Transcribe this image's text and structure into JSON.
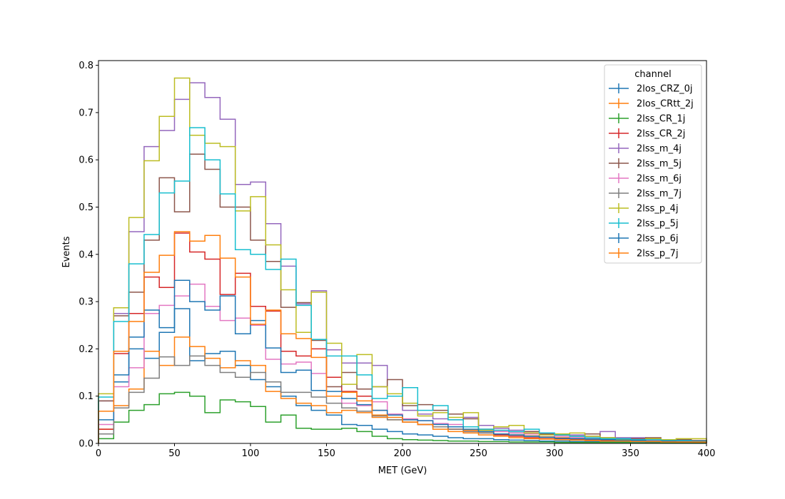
{
  "chart_data": {
    "type": "histogram-step",
    "xlabel": "MET (GeV)",
    "ylabel": "Events",
    "xlim": [
      0,
      400
    ],
    "ylim": [
      0,
      0.81
    ],
    "x_ticks": [
      "0",
      "50",
      "100",
      "150",
      "200",
      "250",
      "300",
      "350",
      "400"
    ],
    "y_ticks": [
      "0.0",
      "0.1",
      "0.2",
      "0.3",
      "0.4",
      "0.5",
      "0.6",
      "0.7",
      "0.8"
    ],
    "grid": false,
    "legend_title": "channel",
    "legend_position": "top-right",
    "bin_edges": [
      0,
      10,
      20,
      30,
      40,
      50,
      60,
      70,
      80,
      90,
      100,
      110,
      120,
      130,
      140,
      150,
      160,
      170,
      180,
      190,
      200,
      210,
      220,
      230,
      240,
      250,
      260,
      270,
      280,
      290,
      300,
      310,
      320,
      330,
      340,
      350,
      360,
      370,
      380,
      390,
      400
    ],
    "series": [
      {
        "name": "2los_CRZ_0j",
        "color": "#1f77b4",
        "values": [
          0.02,
          0.13,
          0.2,
          0.18,
          0.235,
          0.285,
          0.175,
          0.19,
          0.195,
          0.165,
          0.135,
          0.12,
          0.1,
          0.08,
          0.07,
          0.06,
          0.04,
          0.038,
          0.03,
          0.025,
          0.02,
          0.018,
          0.015,
          0.012,
          0.01,
          0.01,
          0.008,
          0.007,
          0.006,
          0.005,
          0.005,
          0.004,
          0.004,
          0.003,
          0.003,
          0.003,
          0.002,
          0.002,
          0.002,
          0.002
        ]
      },
      {
        "name": "2los_CRtt_2j",
        "color": "#ff7f0e",
        "values": [
          0.03,
          0.08,
          0.115,
          0.195,
          0.165,
          0.225,
          0.205,
          0.18,
          0.16,
          0.175,
          0.165,
          0.11,
          0.095,
          0.085,
          0.08,
          0.065,
          0.07,
          0.065,
          0.055,
          0.05,
          0.045,
          0.04,
          0.035,
          0.03,
          0.028,
          0.025,
          0.02,
          0.018,
          0.016,
          0.014,
          0.012,
          0.01,
          0.009,
          0.008,
          0.007,
          0.006,
          0.005,
          0.005,
          0.004,
          0.004
        ]
      },
      {
        "name": "2lss_CR_1j",
        "color": "#2ca02c",
        "values": [
          0.01,
          0.045,
          0.07,
          0.082,
          0.105,
          0.108,
          0.1,
          0.065,
          0.092,
          0.088,
          0.078,
          0.045,
          0.06,
          0.032,
          0.03,
          0.03,
          0.032,
          0.025,
          0.015,
          0.01,
          0.008,
          0.007,
          0.006,
          0.005,
          0.005,
          0.004,
          0.004,
          0.003,
          0.003,
          0.003,
          0.002,
          0.002,
          0.002,
          0.002,
          0.002,
          0.001,
          0.001,
          0.001,
          0.001,
          0.001
        ]
      },
      {
        "name": "2lss_CR_2j",
        "color": "#d62728",
        "values": [
          0.03,
          0.19,
          0.275,
          0.352,
          0.33,
          0.445,
          0.405,
          0.39,
          0.315,
          0.36,
          0.29,
          0.28,
          0.195,
          0.185,
          0.2,
          0.14,
          0.11,
          0.1,
          0.07,
          0.06,
          0.05,
          0.04,
          0.035,
          0.03,
          0.025,
          0.022,
          0.018,
          0.015,
          0.012,
          0.01,
          0.009,
          0.008,
          0.007,
          0.006,
          0.005,
          0.005,
          0.004,
          0.004,
          0.003,
          0.003
        ]
      },
      {
        "name": "2lss_m_4j",
        "color": "#9467bd",
        "values": [
          0.09,
          0.275,
          0.448,
          0.628,
          0.662,
          0.728,
          0.763,
          0.732,
          0.686,
          0.548,
          0.553,
          0.465,
          0.375,
          0.295,
          0.323,
          0.198,
          0.17,
          0.17,
          0.165,
          0.1,
          0.07,
          0.062,
          0.052,
          0.05,
          0.055,
          0.038,
          0.032,
          0.028,
          0.025,
          0.022,
          0.018,
          0.018,
          0.015,
          0.025,
          0.012,
          0.012,
          0.01,
          0.008,
          0.008,
          0.006
        ]
      },
      {
        "name": "2lss_m_5j",
        "color": "#8c564b",
        "values": [
          0.09,
          0.27,
          0.32,
          0.43,
          0.562,
          0.49,
          0.612,
          0.58,
          0.5,
          0.5,
          0.43,
          0.385,
          0.288,
          0.298,
          0.218,
          0.12,
          0.15,
          0.115,
          0.12,
          0.135,
          0.08,
          0.082,
          0.07,
          0.062,
          0.052,
          0.03,
          0.025,
          0.022,
          0.025,
          0.02,
          0.018,
          0.015,
          0.02,
          0.012,
          0.01,
          0.01,
          0.012,
          0.008,
          0.008,
          0.006
        ]
      },
      {
        "name": "2lss_m_6j",
        "color": "#e377c2",
        "values": [
          0.04,
          0.12,
          0.16,
          0.275,
          0.292,
          0.312,
          0.337,
          0.29,
          0.26,
          0.265,
          0.25,
          0.178,
          0.168,
          0.172,
          0.148,
          0.1,
          0.085,
          0.08,
          0.088,
          0.062,
          0.052,
          0.048,
          0.042,
          0.04,
          0.035,
          0.03,
          0.025,
          0.022,
          0.02,
          0.018,
          0.015,
          0.012,
          0.01,
          0.009,
          0.008,
          0.007,
          0.006,
          0.005,
          0.005,
          0.004
        ]
      },
      {
        "name": "2lss_m_7j",
        "color": "#7f7f7f",
        "values": [
          0.02,
          0.075,
          0.108,
          0.138,
          0.183,
          0.165,
          0.185,
          0.165,
          0.15,
          0.14,
          0.15,
          0.13,
          0.108,
          0.108,
          0.098,
          0.085,
          0.075,
          0.068,
          0.058,
          0.05,
          0.045,
          0.04,
          0.035,
          0.03,
          0.025,
          0.022,
          0.02,
          0.018,
          0.015,
          0.013,
          0.011,
          0.01,
          0.009,
          0.008,
          0.007,
          0.006,
          0.005,
          0.005,
          0.004,
          0.004
        ]
      },
      {
        "name": "2lss_p_4j",
        "color": "#bcbd22",
        "values": [
          0.105,
          0.287,
          0.478,
          0.598,
          0.692,
          0.773,
          0.652,
          0.635,
          0.628,
          0.492,
          0.522,
          0.42,
          0.325,
          0.235,
          0.32,
          0.212,
          0.125,
          0.188,
          0.12,
          0.105,
          0.085,
          0.058,
          0.065,
          0.055,
          0.065,
          0.028,
          0.035,
          0.038,
          0.022,
          0.018,
          0.02,
          0.022,
          0.015,
          0.012,
          0.008,
          0.008,
          0.01,
          0.008,
          0.01,
          0.01
        ]
      },
      {
        "name": "2lss_p_5j",
        "color": "#17becf",
        "values": [
          0.098,
          0.258,
          0.38,
          0.442,
          0.53,
          0.555,
          0.668,
          0.6,
          0.528,
          0.41,
          0.4,
          0.368,
          0.39,
          0.292,
          0.22,
          0.185,
          0.185,
          0.145,
          0.095,
          0.1,
          0.118,
          0.07,
          0.08,
          0.05,
          0.035,
          0.03,
          0.028,
          0.025,
          0.03,
          0.022,
          0.018,
          0.015,
          0.012,
          0.01,
          0.01,
          0.008,
          0.008,
          0.006,
          0.006,
          0.005
        ]
      },
      {
        "name": "2lss_p_6j",
        "color": "#1f77b4",
        "values": [
          0.05,
          0.145,
          0.225,
          0.282,
          0.245,
          0.345,
          0.3,
          0.282,
          0.312,
          0.232,
          0.26,
          0.202,
          0.15,
          0.155,
          0.112,
          0.11,
          0.095,
          0.082,
          0.07,
          0.06,
          0.05,
          0.048,
          0.04,
          0.035,
          0.03,
          0.025,
          0.02,
          0.018,
          0.015,
          0.013,
          0.011,
          0.01,
          0.009,
          0.008,
          0.007,
          0.006,
          0.005,
          0.005,
          0.004,
          0.004
        ]
      },
      {
        "name": "2lss_p_7j",
        "color": "#ff7f0e",
        "values": [
          0.068,
          0.195,
          0.258,
          0.362,
          0.398,
          0.448,
          0.428,
          0.44,
          0.392,
          0.352,
          0.252,
          0.282,
          0.232,
          0.222,
          0.182,
          0.1,
          0.108,
          0.09,
          0.06,
          0.055,
          0.045,
          0.04,
          0.03,
          0.025,
          0.022,
          0.018,
          0.015,
          0.012,
          0.01,
          0.009,
          0.008,
          0.007,
          0.006,
          0.005,
          0.005,
          0.004,
          0.004,
          0.003,
          0.003,
          0.003
        ]
      }
    ]
  }
}
